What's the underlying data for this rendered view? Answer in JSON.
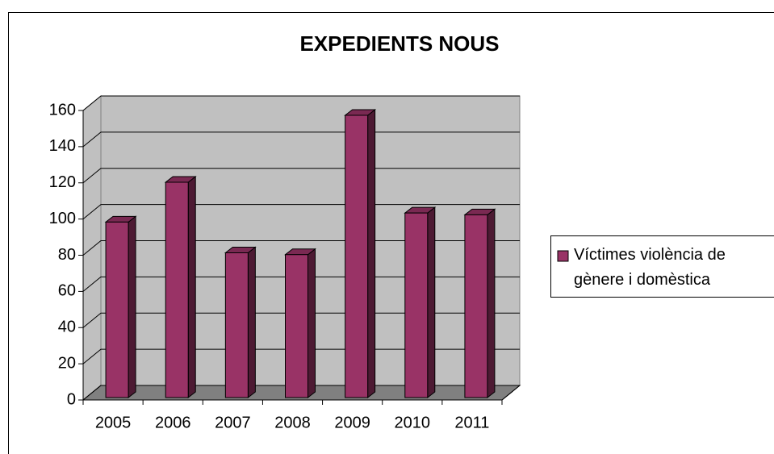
{
  "chart_data": {
    "type": "bar",
    "title": "EXPEDIENTS NOUS",
    "categories": [
      "2005",
      "2006",
      "2007",
      "2008",
      "2009",
      "2010",
      "2011"
    ],
    "series": [
      {
        "name": "Víctimes violència de gènere i domèstica",
        "color": "#993366",
        "values": [
          97,
          119,
          80,
          79,
          156,
          102,
          101
        ]
      }
    ],
    "ylim": [
      0,
      160
    ],
    "yticks": [
      0,
      20,
      40,
      60,
      80,
      100,
      120,
      140,
      160
    ],
    "grid": true,
    "legend": "right"
  }
}
